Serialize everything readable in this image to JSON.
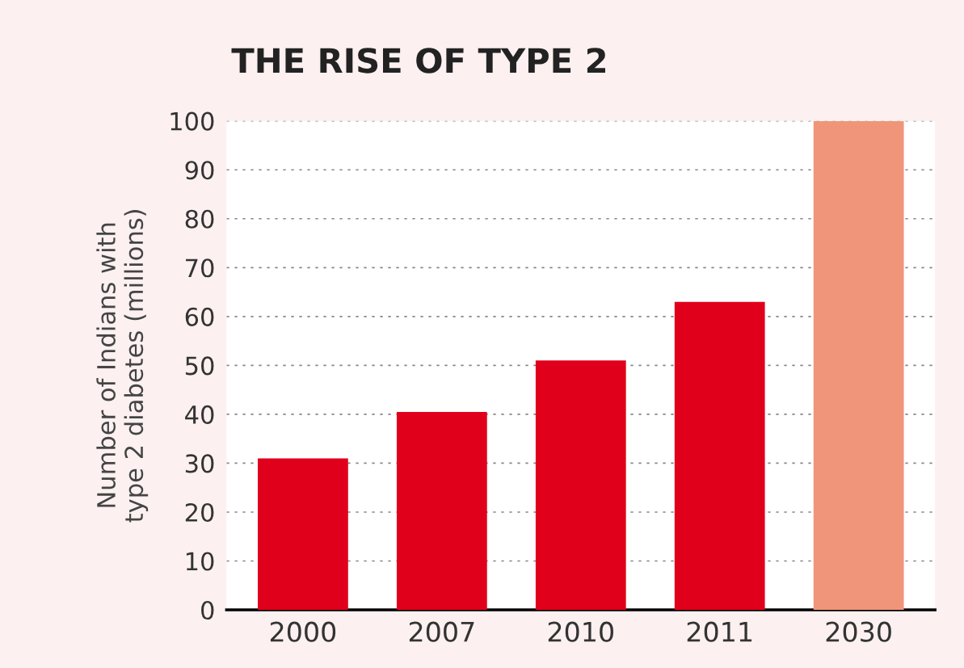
{
  "chart_data": {
    "type": "bar",
    "title": "THE RISE OF TYPE 2",
    "ylabel": "Number of Indians with\ntype 2 diabetes (millions)",
    "categories": [
      "2000",
      "2007",
      "2010",
      "2011",
      "2030"
    ],
    "values": [
      31,
      40.5,
      51,
      63,
      100
    ],
    "colors": [
      "#e0001b",
      "#e0001b",
      "#e0001b",
      "#e0001b",
      "#f0957a"
    ],
    "ylim": [
      0,
      100
    ],
    "yticks": [
      0,
      10,
      20,
      30,
      40,
      50,
      60,
      70,
      80,
      90,
      100
    ],
    "grid": "y"
  }
}
